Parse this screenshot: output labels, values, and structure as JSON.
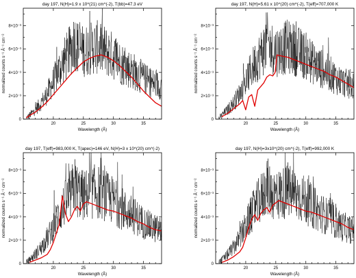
{
  "chart_data": [
    {
      "type": "line",
      "title": "day 197, N(H)=1.9 x 10^(21) cm^(-2), T(bb)=47.3 eV",
      "xlabel": "Wavelength (Å)",
      "ylabel": "normalized counts s⁻¹ Å⁻¹ cm⁻²",
      "xlim": [
        15,
        38
      ],
      "ylim": [
        0,
        0.0095
      ],
      "x_ticks": [
        "20",
        "25",
        "30",
        "35"
      ],
      "y_ticks": [
        "0",
        "2×10⁻³",
        "4×10⁻³",
        "6×10⁻³",
        "8×10⁻³"
      ],
      "data_color": "#000000",
      "model_color": "#e00000",
      "series": [
        {
          "role": "data",
          "x": [
            15.5,
            16,
            17,
            18,
            19,
            20,
            21,
            22,
            23,
            23.5,
            24,
            25,
            26,
            27,
            28,
            29,
            30,
            31,
            32,
            33,
            34,
            35,
            36,
            37,
            38
          ],
          "y": [
            0.0001,
            0.0003,
            0.0008,
            0.0014,
            0.0022,
            0.0032,
            0.0043,
            0.0052,
            0.006,
            0.0068,
            0.0062,
            0.0058,
            0.006,
            0.0062,
            0.006,
            0.0057,
            0.0054,
            0.0049,
            0.0045,
            0.0042,
            0.0039,
            0.0035,
            0.0032,
            0.003,
            0.0028
          ]
        },
        {
          "role": "model",
          "x": [
            15.5,
            16,
            17,
            18,
            19,
            20,
            21,
            22,
            23,
            24,
            25,
            26,
            27,
            28,
            29,
            30,
            31,
            32,
            33,
            34,
            35,
            36,
            37,
            38
          ],
          "y": [
            0.0001,
            0.0003,
            0.0006,
            0.001,
            0.0015,
            0.0021,
            0.0027,
            0.0033,
            0.0039,
            0.0044,
            0.0049,
            0.0052,
            0.0054,
            0.0055,
            0.0053,
            0.005,
            0.0046,
            0.0041,
            0.0036,
            0.003,
            0.0024,
            0.0019,
            0.0014,
            0.0011
          ]
        }
      ]
    },
    {
      "type": "line",
      "title": "day 197, N(H)=5.61 x 10^(20) cm^(-2), T(eff)=707,000 K",
      "xlabel": "Wavelength (Å)",
      "ylabel": "normalized counts s⁻¹ Å⁻¹ cm⁻²",
      "xlim": [
        15,
        38
      ],
      "ylim": [
        0,
        0.0095
      ],
      "x_ticks": [
        "20",
        "25",
        "30",
        "35"
      ],
      "y_ticks": [
        "0",
        "2×10⁻³",
        "4×10⁻³",
        "6×10⁻³",
        "8×10⁻³"
      ],
      "data_color": "#000000",
      "model_color": "#e00000",
      "series": [
        {
          "role": "data",
          "x": [
            15.5,
            16,
            17,
            18,
            19,
            20,
            21,
            22,
            23,
            23.5,
            24,
            25,
            26,
            27,
            28,
            29,
            30,
            31,
            32,
            33,
            34,
            35,
            36,
            37,
            38
          ],
          "y": [
            0.0001,
            0.0003,
            0.0008,
            0.0014,
            0.0022,
            0.0032,
            0.0043,
            0.0052,
            0.006,
            0.0068,
            0.0062,
            0.0058,
            0.006,
            0.0062,
            0.006,
            0.0057,
            0.0054,
            0.0049,
            0.0045,
            0.0042,
            0.0039,
            0.0035,
            0.0032,
            0.003,
            0.0028
          ]
        },
        {
          "role": "model",
          "x": [
            16,
            17,
            18,
            19,
            19.5,
            20,
            20.5,
            21,
            21.5,
            22,
            22.5,
            23,
            23.5,
            24,
            24.5,
            24.9,
            25.2,
            26,
            27,
            28,
            29,
            30,
            31,
            32,
            33,
            34,
            35,
            36,
            37,
            38
          ],
          "y": [
            0.0002,
            0.0005,
            0.0009,
            0.0013,
            0.0016,
            0.0008,
            0.0019,
            0.0021,
            0.0011,
            0.0025,
            0.0028,
            0.0031,
            0.0036,
            0.0038,
            0.0037,
            0.004,
            0.0055,
            0.0054,
            0.0053,
            0.0051,
            0.0049,
            0.0047,
            0.0045,
            0.0043,
            0.0041,
            0.0038,
            0.0036,
            0.0033,
            0.003,
            0.0027
          ]
        }
      ]
    },
    {
      "type": "line",
      "title": "day 197, T(eff)=983,000 K, T(apec)=146 eV, N(H)=3 x 10^(20) cm^(-2)",
      "xlabel": "Wavelength (Å)",
      "ylabel": "normalized counts s⁻¹ Å⁻¹ cm⁻²",
      "xlim": [
        15,
        38
      ],
      "ylim": [
        0,
        0.0095
      ],
      "x_ticks": [
        "20",
        "25",
        "30",
        "35"
      ],
      "y_ticks": [
        "0",
        "2×10⁻³",
        "4×10⁻³",
        "6×10⁻³",
        "8×10⁻³"
      ],
      "data_color": "#000000",
      "model_color": "#e00000",
      "series": [
        {
          "role": "data",
          "x": [
            15.5,
            16,
            17,
            18,
            19,
            20,
            21,
            22,
            23,
            23.5,
            24,
            25,
            26,
            27,
            28,
            29,
            30,
            31,
            32,
            33,
            34,
            35,
            36,
            37,
            38
          ],
          "y": [
            0.0001,
            0.0003,
            0.0008,
            0.0014,
            0.0022,
            0.0032,
            0.0043,
            0.0052,
            0.006,
            0.0068,
            0.0062,
            0.0058,
            0.006,
            0.0062,
            0.006,
            0.0057,
            0.0054,
            0.0049,
            0.0045,
            0.0042,
            0.0039,
            0.0035,
            0.0032,
            0.003,
            0.0028
          ]
        },
        {
          "role": "model",
          "x": [
            16,
            17,
            18,
            19,
            19.5,
            20,
            20.5,
            21,
            21.5,
            22,
            22.5,
            23,
            23.5,
            24,
            24.5,
            25,
            25.5,
            26,
            27,
            28,
            29,
            30,
            31,
            32,
            33,
            34,
            35,
            36,
            37,
            38
          ],
          "y": [
            0.0001,
            0.0003,
            0.0005,
            0.0008,
            0.0012,
            0.0018,
            0.0026,
            0.0034,
            0.0058,
            0.0043,
            0.0036,
            0.004,
            0.0046,
            0.0049,
            0.0045,
            0.0051,
            0.0053,
            0.0052,
            0.005,
            0.0048,
            0.0046,
            0.0045,
            0.0043,
            0.0041,
            0.0039,
            0.0036,
            0.0034,
            0.0031,
            0.0029,
            0.0028
          ]
        }
      ]
    },
    {
      "type": "line",
      "title": "day 197, N(H)=3x10^(20) cm^(-2), T(eff)=992,000 K",
      "xlabel": "Wavelength (Å)",
      "ylabel": "normalized counts s⁻¹ Å⁻¹ cm⁻²",
      "xlim": [
        15,
        38
      ],
      "ylim": [
        0,
        0.0095
      ],
      "x_ticks": [
        "20",
        "25",
        "30",
        "35"
      ],
      "y_ticks": [
        "0",
        "2×10⁻³",
        "4×10⁻³",
        "6×10⁻³",
        "8×10⁻³"
      ],
      "data_color": "#000000",
      "model_color": "#e00000",
      "series": [
        {
          "role": "data",
          "x": [
            15.5,
            16,
            17,
            18,
            19,
            20,
            21,
            22,
            23,
            23.5,
            24,
            25,
            26,
            27,
            28,
            29,
            30,
            31,
            32,
            33,
            34,
            35,
            36,
            37,
            38
          ],
          "y": [
            0.0001,
            0.0003,
            0.0008,
            0.0014,
            0.0022,
            0.0032,
            0.0043,
            0.0052,
            0.006,
            0.0068,
            0.0062,
            0.0058,
            0.006,
            0.0062,
            0.006,
            0.0057,
            0.0054,
            0.0049,
            0.0045,
            0.0042,
            0.0039,
            0.0035,
            0.0032,
            0.003,
            0.0028
          ]
        },
        {
          "role": "model",
          "x": [
            16,
            17,
            18,
            19,
            19.5,
            20,
            20.5,
            21,
            21.5,
            22,
            22.5,
            23,
            23.5,
            24,
            24.5,
            25,
            25.5,
            26,
            27,
            28,
            29,
            30,
            31,
            32,
            33,
            34,
            35,
            36,
            37,
            38
          ],
          "y": [
            0.0001,
            0.0003,
            0.0006,
            0.001,
            0.0014,
            0.0022,
            0.0031,
            0.0038,
            0.0042,
            0.0037,
            0.0043,
            0.0046,
            0.0048,
            0.0044,
            0.005,
            0.0052,
            0.0054,
            0.0053,
            0.0051,
            0.0049,
            0.0047,
            0.0045,
            0.0044,
            0.0042,
            0.004,
            0.0038,
            0.0036,
            0.0034,
            0.0031,
            0.0029
          ]
        }
      ]
    }
  ]
}
